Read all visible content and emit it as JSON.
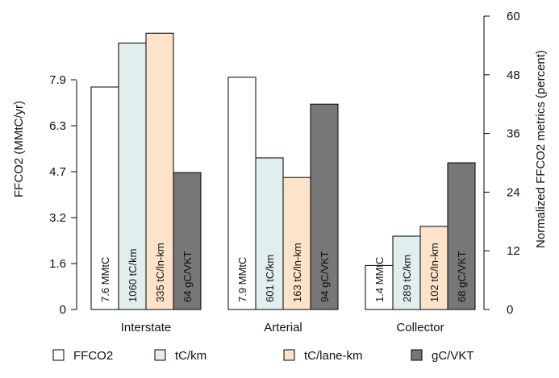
{
  "chart_data": {
    "type": "bar",
    "categories": [
      "Interstate",
      "Arterial",
      "Collector"
    ],
    "series": [
      {
        "name": "FFCO2",
        "values": [
          45.5,
          47.5,
          9.0
        ],
        "labels": [
          "7.6 MMtC",
          "7.9 MMtC",
          "1.4 MMtC"
        ],
        "color": "#ffffff"
      },
      {
        "name": "tC/km",
        "values": [
          54.5,
          31.0,
          15.0
        ],
        "labels": [
          "1060 tC/km",
          "601 tC/km",
          "289 tC/km"
        ],
        "color": "#e0eeee"
      },
      {
        "name": "tC/lane-km",
        "values": [
          56.5,
          27.0,
          17.0
        ],
        "labels": [
          "335 tC/ln-km",
          "163 tC/ln-km",
          "102 tC/ln-km"
        ],
        "color": "#fde3c9"
      },
      {
        "name": "gC/VKT",
        "values": [
          28.0,
          42.0,
          30.0
        ],
        "labels": [
          "64 gC/VKT",
          "94 gC/VKT",
          "68 gC/VKT"
        ],
        "color": "#777777"
      }
    ],
    "ylabel_left": "FFCO2 (MMtC/yr)",
    "ylabel_right": "Normalized FFCO2 metrics (percent)",
    "left_ticks": [
      "0",
      "1.6",
      "3.2",
      "4.7",
      "6.3",
      "7.9"
    ],
    "right_ticks": [
      "0",
      "12",
      "24",
      "36",
      "48",
      "60"
    ],
    "right_ylim": [
      0,
      60
    ],
    "legend_position": "bottom"
  }
}
